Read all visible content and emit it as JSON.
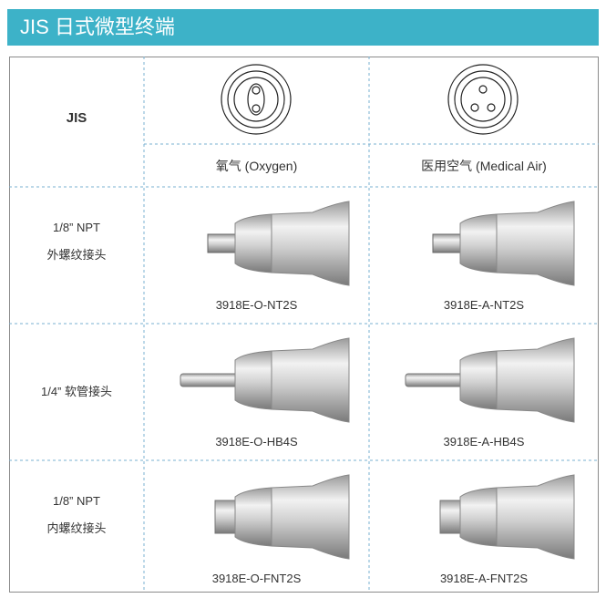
{
  "header": {
    "title": "JIS 日式微型终端"
  },
  "table": {
    "corner": "JIS",
    "columns": [
      "氧气 (Oxygen)",
      "医用空气 (Medical Air)"
    ],
    "rows": [
      {
        "label": [
          "1/8” NPT",
          "外螺纹接头"
        ],
        "parts": [
          "3918E-O-NT2S",
          "3918E-A-NT2S"
        ]
      },
      {
        "label": [
          "1/4” 软管接头"
        ],
        "parts": [
          "3918E-O-HB4S",
          "3918E-A-HB4S"
        ]
      },
      {
        "label": [
          "1/8” NPT",
          "内螺纹接头"
        ],
        "parts": [
          "3918E-O-FNT2S",
          "3918E-A-FNT2S"
        ]
      }
    ]
  }
}
